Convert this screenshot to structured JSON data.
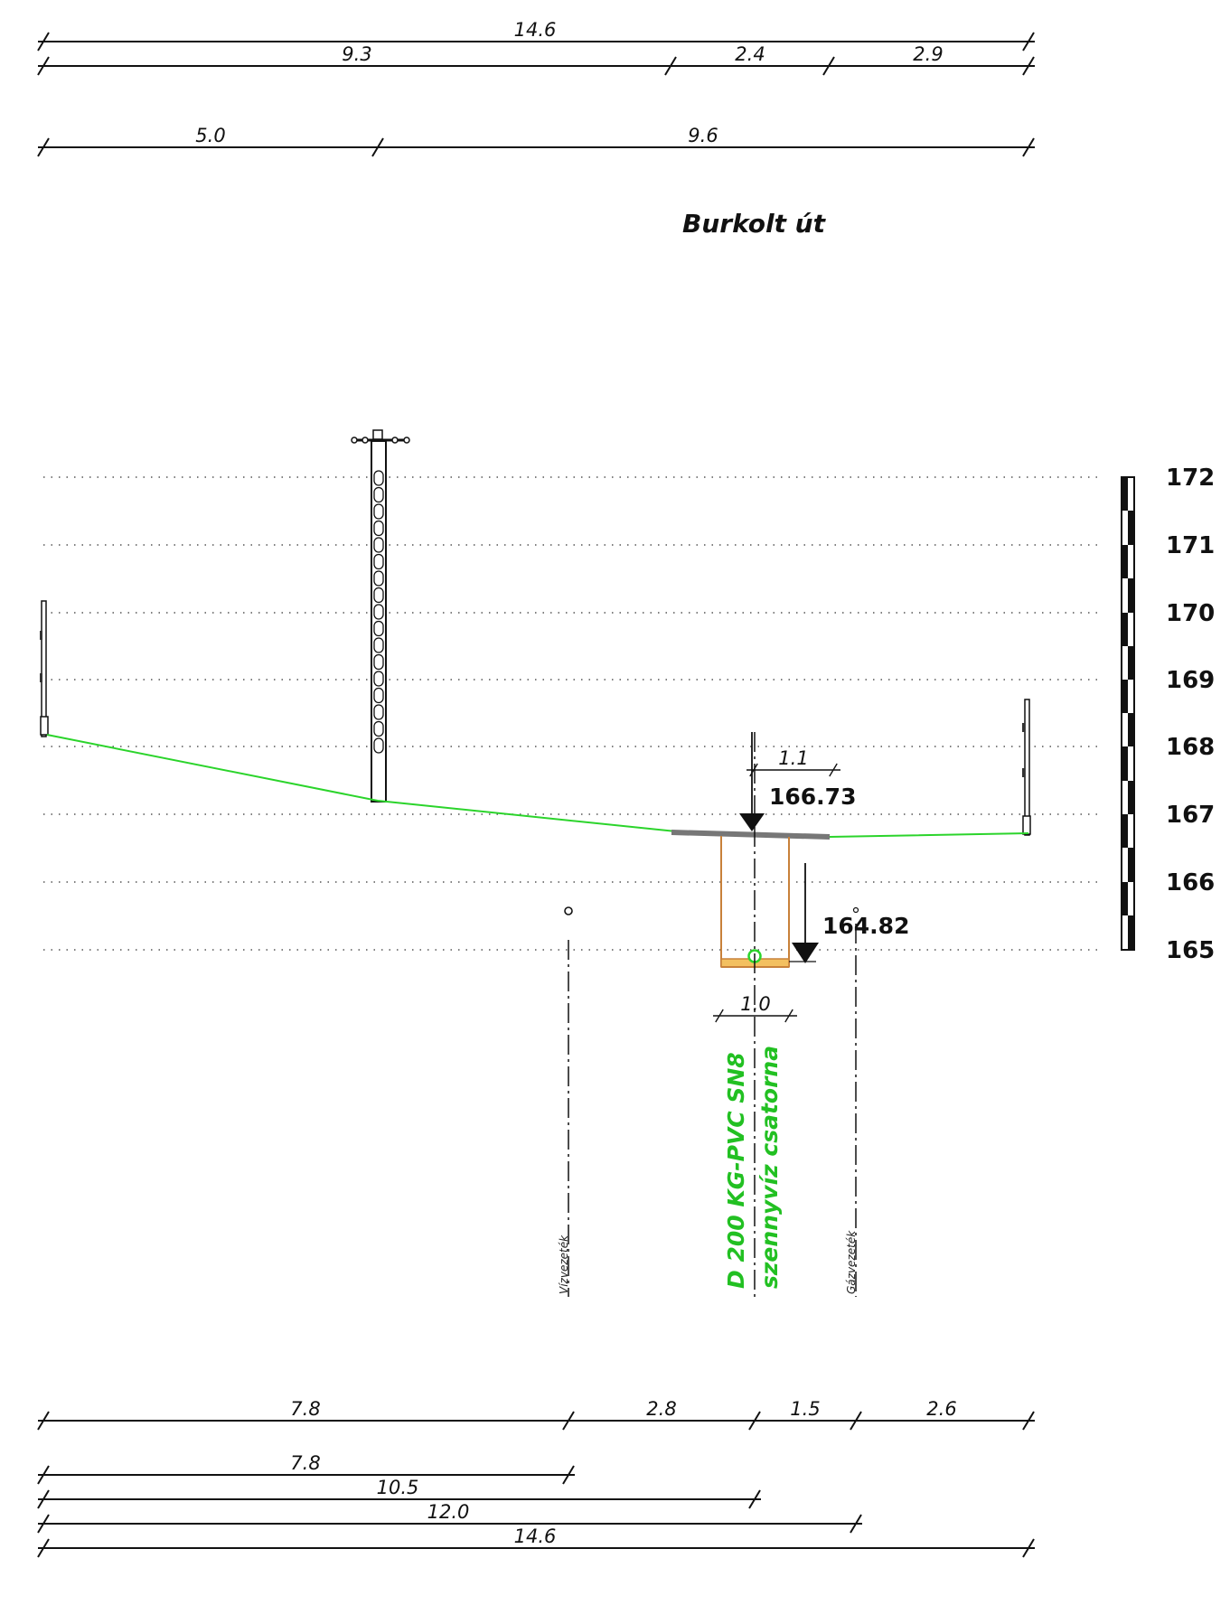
{
  "title": "Burkolt út",
  "colors": {
    "terrain": "#2bd42b",
    "pipe_label": "#22c022",
    "trench": "#c8813a",
    "bedding": "#f0b030",
    "road": "#777777",
    "ink": "#111111"
  },
  "top_dimensions": {
    "row1": [
      "14.6"
    ],
    "row2": [
      "9.3",
      "2.4",
      "2.9"
    ],
    "row3": [
      "5.0",
      "9.6"
    ]
  },
  "bottom_dimensions": {
    "row1": [
      "7.8",
      "2.8",
      "1.5",
      "2.6"
    ],
    "cumulative": [
      "7.8",
      "10.5",
      "12.0",
      "14.6"
    ]
  },
  "elevation_scale": [
    "172",
    "171",
    "170",
    "169",
    "168",
    "167",
    "166",
    "165"
  ],
  "elevations": {
    "surface": "166.73",
    "invert": "164.82"
  },
  "trench_dims": {
    "top_offset": "1.1",
    "width": "1.0"
  },
  "utilities": {
    "water": "Vízvezeték",
    "gas": "Gázvezeték"
  },
  "pipe": {
    "line1": "D 200 KG-PVC SN8",
    "line2": "szennyvíz csatorna"
  },
  "icons": [
    "utility-pole-icon",
    "fence-post-icon",
    "elevation-marker-icon",
    "pipe-section-icon"
  ]
}
